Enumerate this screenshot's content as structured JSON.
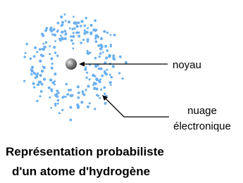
{
  "labels": {
    "nucleus": "noyau",
    "cloud": [
      "nuage",
      "électronique"
    ]
  },
  "caption": [
    "Représentation probabiliste",
    "d'un atome d'hydrogène"
  ]
}
